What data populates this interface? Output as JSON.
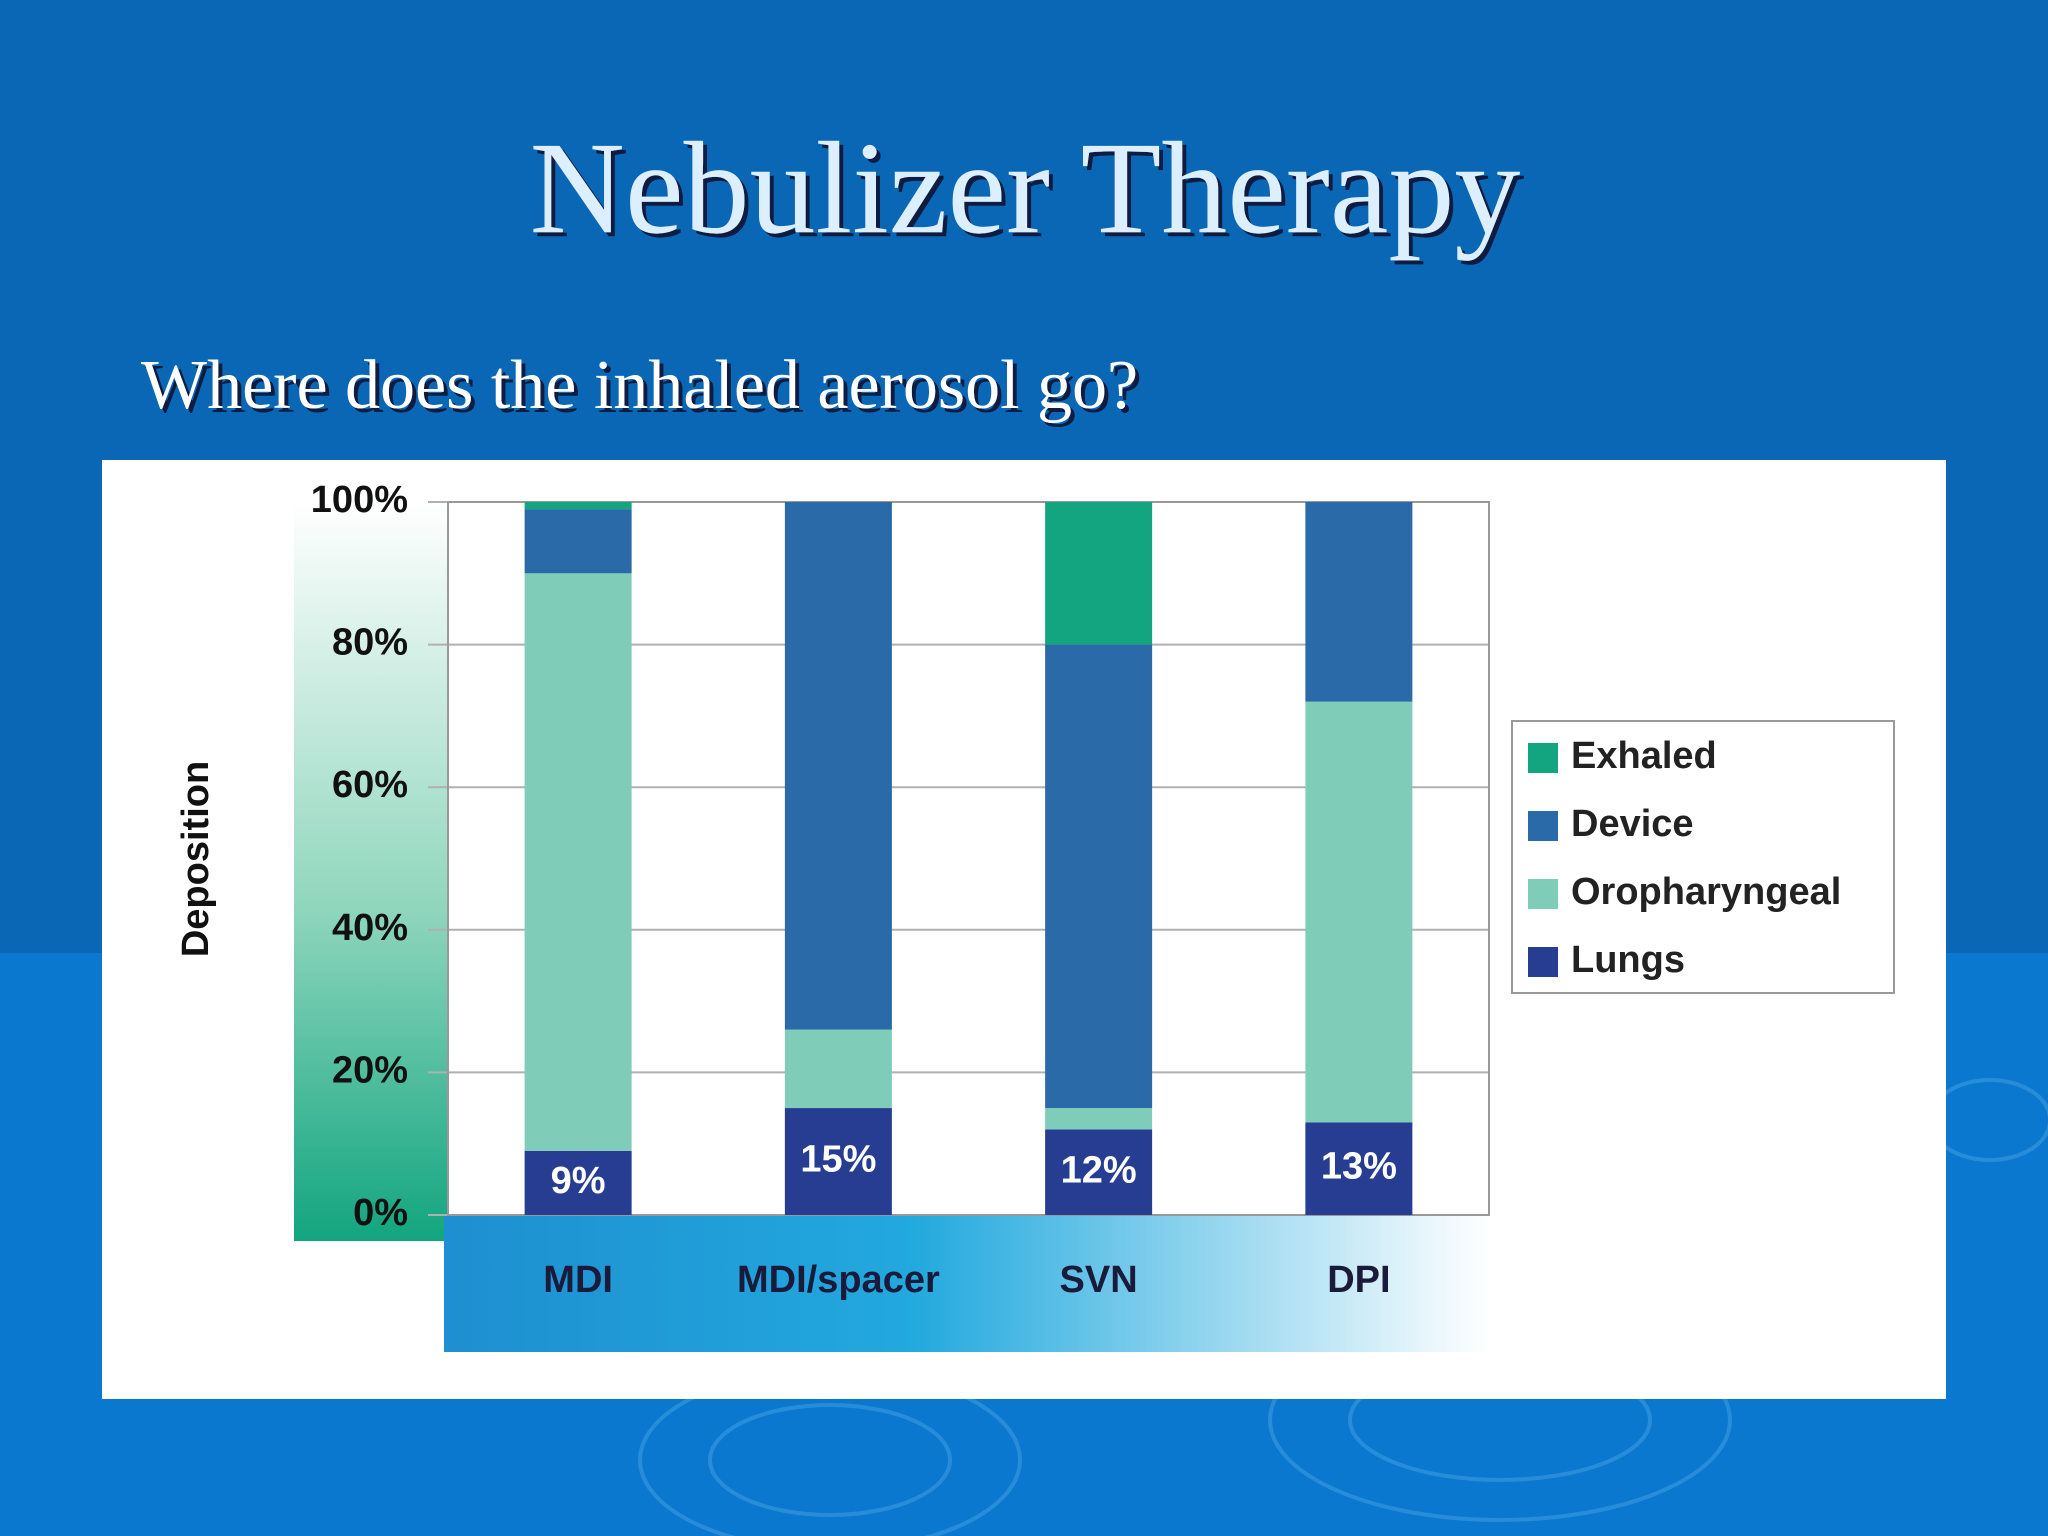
{
  "chart_data": {
    "type": "stacked_bar",
    "title": "Nebulizer Therapy",
    "subtitle": "Where does the inhaled aerosol go?",
    "y_label": "Deposition",
    "categories": [
      "MDI",
      "MDI/spacer",
      "SVN",
      "DPI"
    ],
    "series": [
      {
        "name": "Lungs",
        "color": "#263d91",
        "values": [
          9,
          15,
          12,
          13
        ],
        "value_labels": [
          "9%",
          "15%",
          "12%",
          "13%"
        ]
      },
      {
        "name": "Oropharyngeal",
        "color": "#7fcdb8",
        "values": [
          81,
          11,
          3,
          59
        ]
      },
      {
        "name": "Device",
        "color": "#2a6aa8",
        "values": [
          9,
          74,
          65,
          28
        ]
      },
      {
        "name": "Exhaled",
        "color": "#12a57f",
        "values": [
          1,
          0,
          20,
          0
        ]
      }
    ],
    "ylim": [
      0,
      100
    ],
    "yticks": [
      {
        "value": 0,
        "label": "0%"
      },
      {
        "value": 20,
        "label": "20%"
      },
      {
        "value": 40,
        "label": "40%"
      },
      {
        "value": 60,
        "label": "60%"
      },
      {
        "value": 80,
        "label": "80%"
      },
      {
        "value": 100,
        "label": "100%"
      }
    ],
    "grid": true,
    "legend": "right"
  }
}
